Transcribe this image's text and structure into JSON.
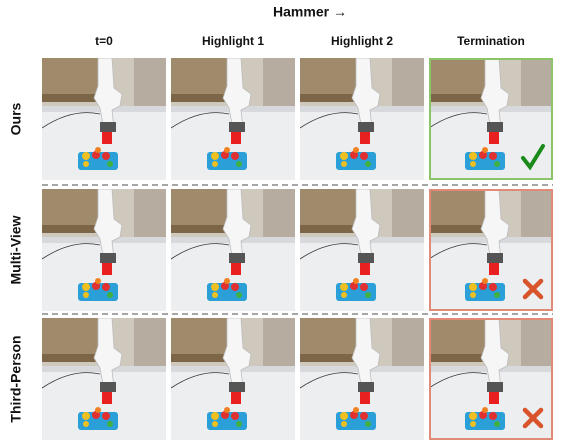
{
  "header": {
    "title": "Hammer →"
  },
  "columns": [
    "t=0",
    "Highlight 1",
    "Highlight 2",
    "Termination"
  ],
  "rows": [
    "Ours",
    "Multi-View",
    "Third-Person"
  ]
}
